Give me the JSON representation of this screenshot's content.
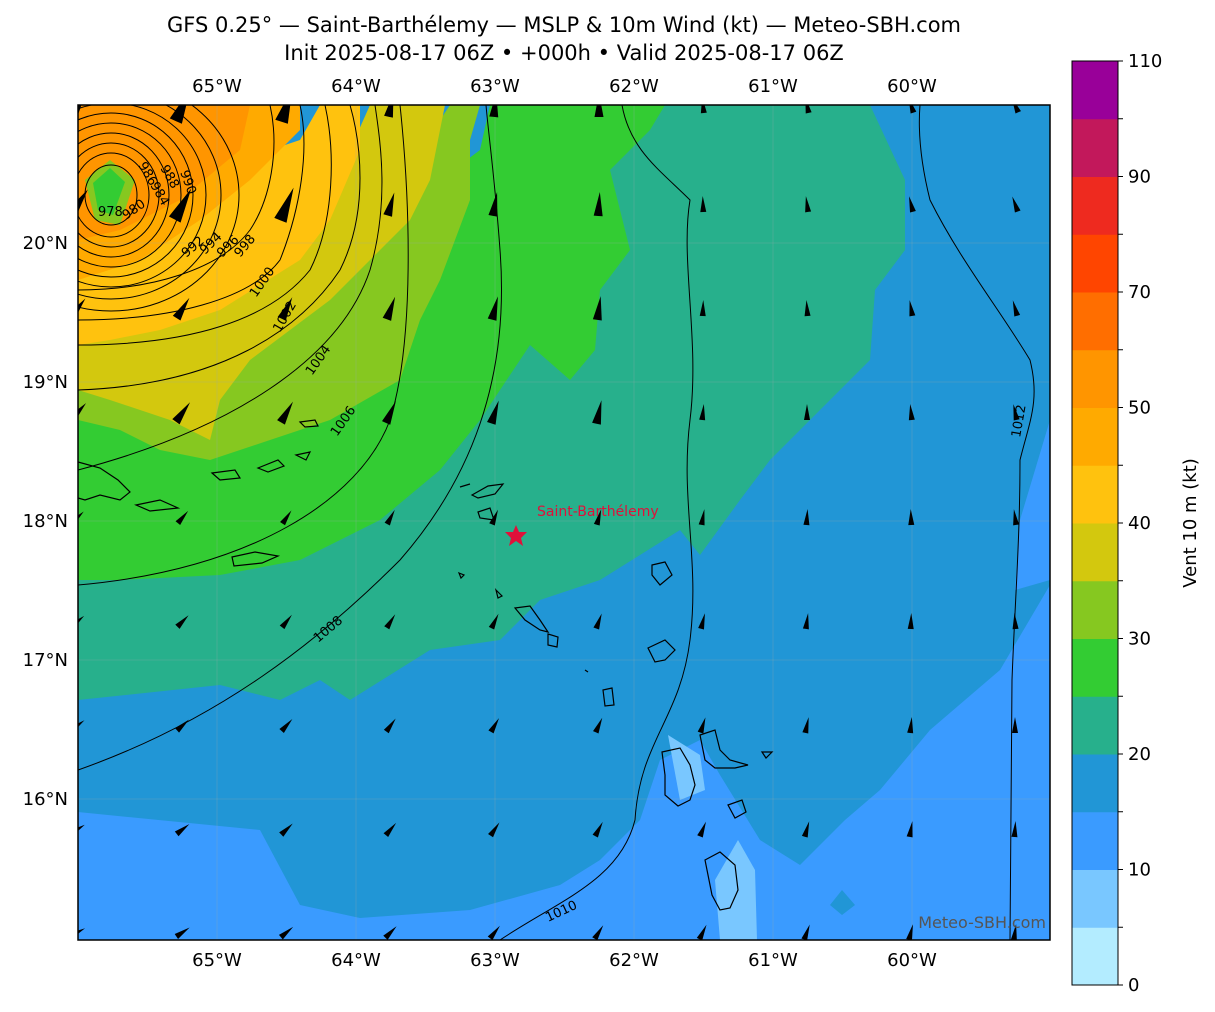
{
  "title": {
    "line1": "GFS 0.25° — Saint-Barthélemy — MSLP & 10m Wind (kt) — Meteo-SBH.com",
    "line2": "Init 2025-08-17 06Z • +000h • Valid 2025-08-17 06Z"
  },
  "map": {
    "lon_labels": [
      "65°W",
      "64°W",
      "63°W",
      "62°W",
      "61°W",
      "60°W"
    ],
    "lat_labels": [
      "20°N",
      "19°N",
      "18°N",
      "17°N",
      "16°N"
    ],
    "place": {
      "name": "Saint-Barthélemy",
      "marker": "star-icon",
      "marker_color": "#e0103a"
    },
    "watermark": "Meteo-SBH.com",
    "isobar_labels": [
      "978",
      "980",
      "984",
      "986",
      "988",
      "990",
      "992",
      "994",
      "996",
      "998",
      "1000",
      "1002",
      "1004",
      "1006",
      "1008",
      "1010",
      "1012"
    ]
  },
  "colorbar": {
    "title": "Vent 10 m (kt)",
    "tick_labels": [
      "0",
      "10",
      "20",
      "30",
      "40",
      "50",
      "70",
      "90",
      "110"
    ],
    "levels": [
      {
        "from": 0,
        "to": 5,
        "color": "#b3ecff"
      },
      {
        "from": 5,
        "to": 10,
        "color": "#79c7ff"
      },
      {
        "from": 10,
        "to": 15,
        "color": "#3a9bff"
      },
      {
        "from": 15,
        "to": 20,
        "color": "#2196d6"
      },
      {
        "from": 20,
        "to": 25,
        "color": "#27b08c"
      },
      {
        "from": 25,
        "to": 30,
        "color": "#33cc33"
      },
      {
        "from": 30,
        "to": 35,
        "color": "#86c820"
      },
      {
        "from": 35,
        "to": 40,
        "color": "#d3c80e"
      },
      {
        "from": 40,
        "to": 45,
        "color": "#ffc20e"
      },
      {
        "from": 45,
        "to": 50,
        "color": "#ffaa00"
      },
      {
        "from": 50,
        "to": 60,
        "color": "#ff9500"
      },
      {
        "from": 60,
        "to": 70,
        "color": "#ff6e00"
      },
      {
        "from": 70,
        "to": 80,
        "color": "#ff4500"
      },
      {
        "from": 80,
        "to": 90,
        "color": "#ee2a1f"
      },
      {
        "from": 90,
        "to": 100,
        "color": "#c2185b"
      },
      {
        "from": 100,
        "to": 110,
        "color": "#990099"
      }
    ]
  }
}
